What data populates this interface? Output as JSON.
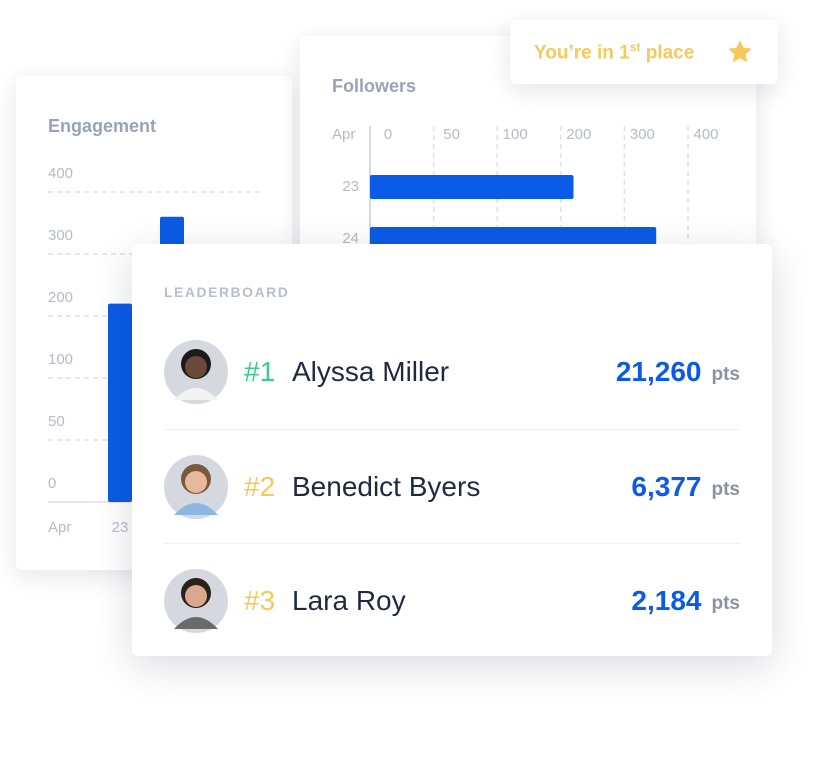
{
  "chart_data": [
    {
      "type": "bar",
      "title": "Engagement",
      "xlabel": "Apr",
      "categories": [
        "23",
        null
      ],
      "values": [
        220,
        360
      ],
      "color": "#0a5be6",
      "yticks": [
        0,
        50,
        100,
        200,
        300,
        400
      ],
      "ylim": [
        0,
        400
      ],
      "grid": true
    },
    {
      "type": "hbar",
      "title": "Followers",
      "ylabel": "Apr",
      "categories": [
        "23",
        "24"
      ],
      "values": [
        220,
        350
      ],
      "color": "#0a5be6",
      "xticks": [
        0,
        50,
        100,
        200,
        300,
        400
      ],
      "xlim": [
        0,
        400
      ],
      "grid": true
    }
  ],
  "badge": {
    "text": "You’re in 1",
    "superscript": "st",
    "text_after": "place"
  },
  "leaderboard": {
    "title": "LEADERBOARD",
    "rows": [
      {
        "rank": "#1",
        "name": "Alyssa Miller",
        "points": "21,260",
        "unit": "pts"
      },
      {
        "rank": "#2",
        "name": "Benedict Byers",
        "points": "6,377",
        "unit": "pts"
      },
      {
        "rank": "#3",
        "name": "Lara Roy",
        "points": "2,184",
        "unit": "pts"
      }
    ]
  }
}
